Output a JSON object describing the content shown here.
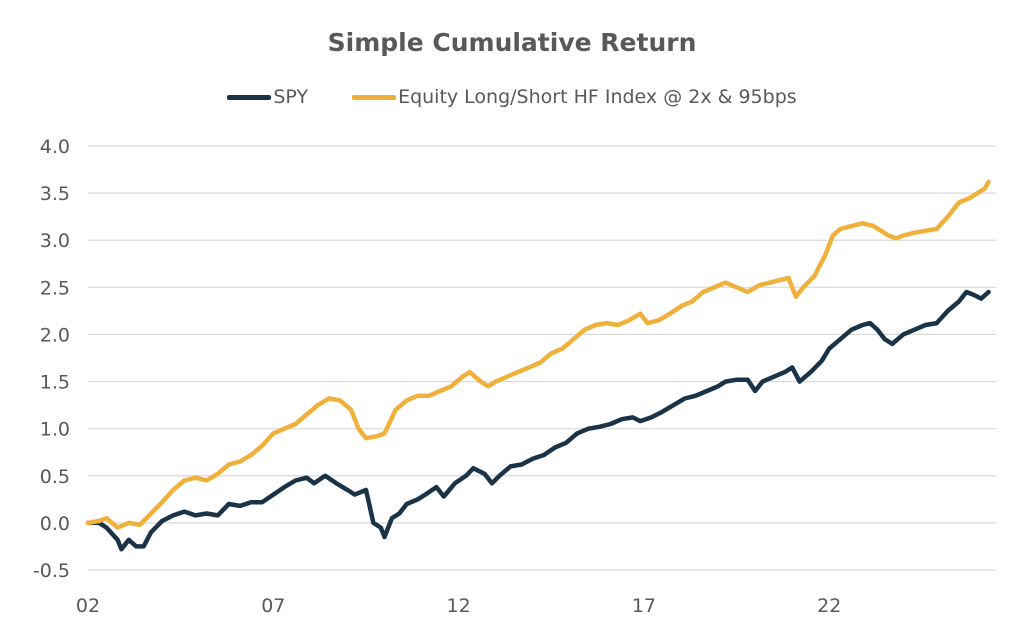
{
  "chart_data": {
    "type": "line",
    "title": "Simple Cumulative Return",
    "xlabel": "",
    "ylabel": "",
    "ylim": [
      -0.5,
      4.0
    ],
    "xlim": [
      2002,
      2026.5
    ],
    "grid": "horizontal",
    "legend_position": "top",
    "x_ticks": [
      2002,
      2007,
      2012,
      2017,
      2022
    ],
    "x_tick_labels": [
      "02",
      "07",
      "12",
      "17",
      "22"
    ],
    "y_ticks": [
      -0.5,
      0.0,
      0.5,
      1.0,
      1.5,
      2.0,
      2.5,
      3.0,
      3.5,
      4.0
    ],
    "y_tick_labels": [
      "-0.5",
      "0.0",
      "0.5",
      "1.0",
      "1.5",
      "2.0",
      "2.5",
      "3.0",
      "3.5",
      "4.0"
    ],
    "series": [
      {
        "name": "SPY",
        "color": "#1b3346",
        "points": [
          [
            2002.0,
            0.0
          ],
          [
            2002.3,
            0.0
          ],
          [
            2002.5,
            -0.05
          ],
          [
            2002.8,
            -0.18
          ],
          [
            2002.9,
            -0.28
          ],
          [
            2003.1,
            -0.18
          ],
          [
            2003.3,
            -0.25
          ],
          [
            2003.5,
            -0.25
          ],
          [
            2003.7,
            -0.1
          ],
          [
            2004.0,
            0.02
          ],
          [
            2004.3,
            0.08
          ],
          [
            2004.6,
            0.12
          ],
          [
            2004.9,
            0.08
          ],
          [
            2005.2,
            0.1
          ],
          [
            2005.5,
            0.08
          ],
          [
            2005.8,
            0.2
          ],
          [
            2006.1,
            0.18
          ],
          [
            2006.4,
            0.22
          ],
          [
            2006.7,
            0.22
          ],
          [
            2007.0,
            0.3
          ],
          [
            2007.3,
            0.38
          ],
          [
            2007.6,
            0.45
          ],
          [
            2007.9,
            0.48
          ],
          [
            2008.1,
            0.42
          ],
          [
            2008.4,
            0.5
          ],
          [
            2008.7,
            0.42
          ],
          [
            2009.0,
            0.35
          ],
          [
            2009.2,
            0.3
          ],
          [
            2009.5,
            0.35
          ],
          [
            2009.7,
            0.0
          ],
          [
            2009.9,
            -0.05
          ],
          [
            2010.0,
            -0.15
          ],
          [
            2010.2,
            0.05
          ],
          [
            2010.4,
            0.1
          ],
          [
            2010.6,
            0.2
          ],
          [
            2010.9,
            0.25
          ],
          [
            2011.1,
            0.3
          ],
          [
            2011.4,
            0.38
          ],
          [
            2011.6,
            0.28
          ],
          [
            2011.9,
            0.42
          ],
          [
            2012.2,
            0.5
          ],
          [
            2012.4,
            0.58
          ],
          [
            2012.7,
            0.52
          ],
          [
            2012.9,
            0.42
          ],
          [
            2013.1,
            0.5
          ],
          [
            2013.4,
            0.6
          ],
          [
            2013.7,
            0.62
          ],
          [
            2014.0,
            0.68
          ],
          [
            2014.3,
            0.72
          ],
          [
            2014.6,
            0.8
          ],
          [
            2014.9,
            0.85
          ],
          [
            2015.2,
            0.95
          ],
          [
            2015.5,
            1.0
          ],
          [
            2015.8,
            1.02
          ],
          [
            2016.1,
            1.05
          ],
          [
            2016.4,
            1.1
          ],
          [
            2016.7,
            1.12
          ],
          [
            2016.9,
            1.08
          ],
          [
            2017.2,
            1.12
          ],
          [
            2017.5,
            1.18
          ],
          [
            2017.8,
            1.25
          ],
          [
            2018.1,
            1.32
          ],
          [
            2018.4,
            1.35
          ],
          [
            2018.7,
            1.4
          ],
          [
            2019.0,
            1.45
          ],
          [
            2019.2,
            1.5
          ],
          [
            2019.5,
            1.52
          ],
          [
            2019.8,
            1.52
          ],
          [
            2020.0,
            1.4
          ],
          [
            2020.2,
            1.5
          ],
          [
            2020.5,
            1.55
          ],
          [
            2020.8,
            1.6
          ],
          [
            2021.0,
            1.65
          ],
          [
            2021.2,
            1.5
          ],
          [
            2021.5,
            1.6
          ],
          [
            2021.8,
            1.72
          ],
          [
            2022.0,
            1.85
          ],
          [
            2022.3,
            1.95
          ],
          [
            2022.6,
            2.05
          ],
          [
            2022.9,
            2.1
          ],
          [
            2023.1,
            2.12
          ],
          [
            2023.3,
            2.05
          ],
          [
            2023.5,
            1.95
          ],
          [
            2023.7,
            1.9
          ],
          [
            2024.0,
            2.0
          ],
          [
            2024.3,
            2.05
          ],
          [
            2024.6,
            2.1
          ],
          [
            2024.9,
            2.12
          ],
          [
            2025.2,
            2.25
          ],
          [
            2025.5,
            2.35
          ],
          [
            2025.7,
            2.45
          ],
          [
            2025.9,
            2.42
          ],
          [
            2026.1,
            2.38
          ],
          [
            2026.3,
            2.45
          ]
        ]
      },
      {
        "name": "Equity Long/Short HF Index @ 2x & 95bps",
        "color": "#f0b13c",
        "points": [
          [
            2002.0,
            0.0
          ],
          [
            2002.3,
            0.02
          ],
          [
            2002.5,
            0.05
          ],
          [
            2002.8,
            -0.05
          ],
          [
            2003.1,
            0.0
          ],
          [
            2003.4,
            -0.02
          ],
          [
            2003.7,
            0.1
          ],
          [
            2004.0,
            0.22
          ],
          [
            2004.3,
            0.35
          ],
          [
            2004.6,
            0.45
          ],
          [
            2004.9,
            0.48
          ],
          [
            2005.2,
            0.45
          ],
          [
            2005.5,
            0.52
          ],
          [
            2005.8,
            0.62
          ],
          [
            2006.1,
            0.65
          ],
          [
            2006.4,
            0.72
          ],
          [
            2006.7,
            0.82
          ],
          [
            2007.0,
            0.95
          ],
          [
            2007.3,
            1.0
          ],
          [
            2007.6,
            1.05
          ],
          [
            2007.9,
            1.15
          ],
          [
            2008.2,
            1.25
          ],
          [
            2008.5,
            1.32
          ],
          [
            2008.8,
            1.3
          ],
          [
            2009.1,
            1.2
          ],
          [
            2009.3,
            1.0
          ],
          [
            2009.5,
            0.9
          ],
          [
            2009.8,
            0.92
          ],
          [
            2010.0,
            0.95
          ],
          [
            2010.3,
            1.2
          ],
          [
            2010.6,
            1.3
          ],
          [
            2010.9,
            1.35
          ],
          [
            2011.2,
            1.35
          ],
          [
            2011.5,
            1.4
          ],
          [
            2011.8,
            1.45
          ],
          [
            2012.1,
            1.55
          ],
          [
            2012.3,
            1.6
          ],
          [
            2012.6,
            1.5
          ],
          [
            2012.8,
            1.45
          ],
          [
            2013.0,
            1.5
          ],
          [
            2013.3,
            1.55
          ],
          [
            2013.6,
            1.6
          ],
          [
            2013.9,
            1.65
          ],
          [
            2014.2,
            1.7
          ],
          [
            2014.5,
            1.8
          ],
          [
            2014.8,
            1.85
          ],
          [
            2015.1,
            1.95
          ],
          [
            2015.4,
            2.05
          ],
          [
            2015.7,
            2.1
          ],
          [
            2016.0,
            2.12
          ],
          [
            2016.3,
            2.1
          ],
          [
            2016.6,
            2.15
          ],
          [
            2016.9,
            2.22
          ],
          [
            2017.1,
            2.12
          ],
          [
            2017.4,
            2.15
          ],
          [
            2017.7,
            2.22
          ],
          [
            2018.0,
            2.3
          ],
          [
            2018.3,
            2.35
          ],
          [
            2018.6,
            2.45
          ],
          [
            2018.9,
            2.5
          ],
          [
            2019.2,
            2.55
          ],
          [
            2019.5,
            2.5
          ],
          [
            2019.8,
            2.45
          ],
          [
            2020.1,
            2.52
          ],
          [
            2020.4,
            2.55
          ],
          [
            2020.7,
            2.58
          ],
          [
            2020.9,
            2.6
          ],
          [
            2021.1,
            2.4
          ],
          [
            2021.3,
            2.5
          ],
          [
            2021.6,
            2.62
          ],
          [
            2021.9,
            2.85
          ],
          [
            2022.1,
            3.05
          ],
          [
            2022.3,
            3.12
          ],
          [
            2022.6,
            3.15
          ],
          [
            2022.9,
            3.18
          ],
          [
            2023.2,
            3.15
          ],
          [
            2023.4,
            3.1
          ],
          [
            2023.6,
            3.05
          ],
          [
            2023.8,
            3.02
          ],
          [
            2024.0,
            3.05
          ],
          [
            2024.3,
            3.08
          ],
          [
            2024.6,
            3.1
          ],
          [
            2024.9,
            3.12
          ],
          [
            2025.2,
            3.25
          ],
          [
            2025.5,
            3.4
          ],
          [
            2025.8,
            3.45
          ],
          [
            2026.0,
            3.5
          ],
          [
            2026.2,
            3.55
          ],
          [
            2026.3,
            3.62
          ]
        ]
      }
    ]
  }
}
